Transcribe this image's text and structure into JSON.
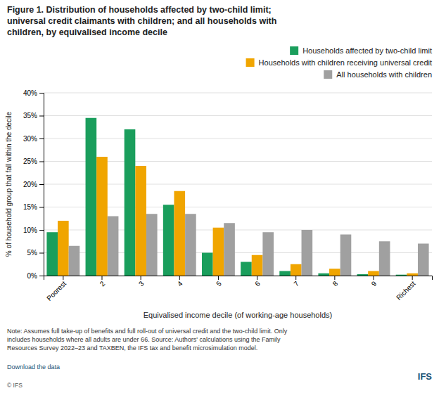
{
  "chart_data": {
    "type": "bar",
    "title": "Figure 1. Distribution of households affected by two-child limit;\nuniversal credit claimants with children; and all households with\nchildren, by equivalised income decile",
    "xlabel": "Equivalised income decile (of working-age households)",
    "ylabel": "% of household group that fall within the decile",
    "categories": [
      "Poorest",
      "2",
      "3",
      "4",
      "5",
      "6",
      "7",
      "8",
      "9",
      "Richest"
    ],
    "series": [
      {
        "name": "Households affected by two-child limit",
        "color": "#1a9e5c",
        "values": [
          9.5,
          34.5,
          32.0,
          15.5,
          5.0,
          3.0,
          1.0,
          0.5,
          0.3,
          0.2
        ]
      },
      {
        "name": "Households with children receiving universal credit",
        "color": "#f0a500",
        "values": [
          12.0,
          26.0,
          24.0,
          18.5,
          10.5,
          4.5,
          2.5,
          1.5,
          1.0,
          0.5
        ]
      },
      {
        "name": "All households with children",
        "color": "#a0a0a0",
        "values": [
          6.5,
          13.0,
          13.5,
          13.5,
          11.5,
          9.5,
          10.0,
          9.0,
          7.5,
          7.0
        ]
      }
    ],
    "ylim": [
      0,
      40
    ],
    "yticks": [
      {
        "value": 0,
        "label": "0%"
      },
      {
        "value": 5,
        "label": "5%"
      },
      {
        "value": 10,
        "label": "10%"
      },
      {
        "value": 15,
        "label": "15%"
      },
      {
        "value": 20,
        "label": "20%"
      },
      {
        "value": 25,
        "label": "25%"
      },
      {
        "value": 30,
        "label": "30%"
      },
      {
        "value": 35,
        "label": "35%"
      },
      {
        "value": 40,
        "label": "40%"
      }
    ],
    "grid": true,
    "legend": "upper right",
    "note": "Note: Assumes full take-up of benefits and full roll-out of universal credit and the two-child limit. Only\nincludes households where all adults are under 66. Source: Authors' calculations using the Family\nResources Survey 2022–23 and TAXBEN, the IFS tax and benefit microsimulation model.",
    "annotations": [
      "Download the data",
      "© IFS",
      "IFS"
    ]
  }
}
